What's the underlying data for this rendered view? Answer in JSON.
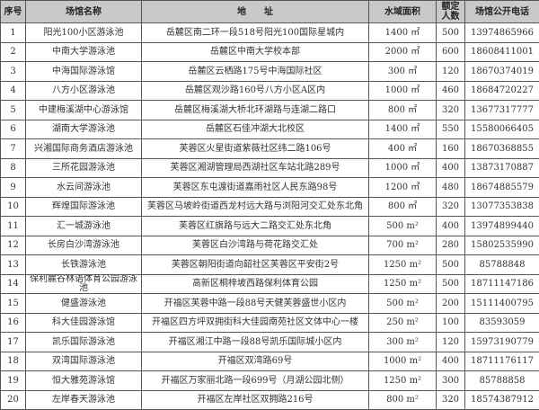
{
  "headers": [
    "序号",
    "场馆名称",
    "地　　址",
    "水域面积",
    "额定人数",
    "场馆公开电话"
  ],
  "rows": [
    {
      "no": "1",
      "name": "阳光100小区游泳池",
      "address": "岳麓区南二环一段518号阳光100国际星城内",
      "area": "1400 ㎡",
      "capacity": "500",
      "phone": "13974865966"
    },
    {
      "no": "2",
      "name": "中南大学游泳池",
      "address": "岳麓区中南大学校本部",
      "area": "2000 ㎡",
      "capacity": "600",
      "phone": "18608411001"
    },
    {
      "no": "3",
      "name": "中海国际游泳馆",
      "address": "岳麓区云栖路175号中海国际社区",
      "area": "300 ㎡",
      "capacity": "120",
      "phone": "18670374019"
    },
    {
      "no": "4",
      "name": "八方小区游泳池",
      "address": "岳麓区观沙路160号八方小区A区内",
      "area": "1000 ㎡",
      "capacity": "460",
      "phone": "18684720227"
    },
    {
      "no": "5",
      "name": "中建梅溪湖中心游泳馆",
      "address": "岳麓区梅溪湖大桥北环湖路与连湖二路口",
      "area": "800 ㎡",
      "capacity": "320",
      "phone": "13677317777"
    },
    {
      "no": "6",
      "name": "湖南大学游泳池",
      "address": "岳麓区石佳冲湖大北校区",
      "area": "1400 ㎡",
      "capacity": "550",
      "phone": "15580066405"
    },
    {
      "no": "7",
      "name": "兴湘国际商务酒店游泳池",
      "address": "芙蓉区火星街道紫薇社区纬二路106号",
      "area": "400 ㎡",
      "capacity": "160",
      "phone": "18670368855"
    },
    {
      "no": "8",
      "name": "三所花园游泳池",
      "address": "芙蓉区湘湖管理局西湖社区车站北路289号",
      "area": "1000 ㎡",
      "capacity": "400",
      "phone": "13873170887"
    },
    {
      "no": "9",
      "name": "水云间游泳池",
      "address": "芙蓉区东屯渡街道嘉雨社区人民东路98号",
      "area": "1200 ㎡",
      "capacity": "480",
      "phone": "18674885579"
    },
    {
      "no": "10",
      "name": "辉煌国际游泳池",
      "address": "芙蓉区马坡岭街道西龙村远大路与浏阳河交汇处东北角",
      "area": "800 ㎡",
      "capacity": "320",
      "phone": "13077353838"
    },
    {
      "no": "11",
      "name": "汇一城游泳池",
      "address": "芙蓉区红旗路与远大二路交汇处东北角",
      "area": "500 m²",
      "capacity": "400",
      "phone": "13974899440"
    },
    {
      "no": "12",
      "name": "长房白沙湾游泳池",
      "address": "芙蓉区白沙湾路与荷花路交汇处",
      "area": "700 m²",
      "capacity": "280",
      "phone": "15802535990"
    },
    {
      "no": "13",
      "name": "长铁游泳池",
      "address": "芙蓉区朝阳街道向韶社区芙蓉区平安街2号",
      "area": "1250 m²",
      "capacity": "500",
      "phone": "85788848"
    },
    {
      "no": "14",
      "name": "保利麓谷林语体育公园游泳池",
      "address": "高新区桐梓坡西路保利体育公园",
      "area": "1250 m²",
      "capacity": "500",
      "phone": "18711147186"
    },
    {
      "no": "15",
      "name": "健盛游泳池",
      "address": "开福区芙蓉中路一段88号天健芙蓉盛世小区内",
      "area": "500 m²",
      "capacity": "200",
      "phone": "15111400795"
    },
    {
      "no": "16",
      "name": "科大佳园游泳馆",
      "address": "开福区四方坪双拥街科大佳园南苑社区文体中心一楼",
      "area": "250 m²",
      "capacity": "100",
      "phone": "83593059"
    },
    {
      "no": "17",
      "name": "凯乐国际游泳池",
      "address": "开福区湘江中路一段88号凯乐国际城小区内",
      "area": "300 m²",
      "capacity": "120",
      "phone": "15973190779"
    },
    {
      "no": "18",
      "name": "双湾国际游泳池",
      "address": "开福区双湾路69号",
      "area": "1000 m²",
      "capacity": "400",
      "phone": "18711176117"
    },
    {
      "no": "19",
      "name": "恒大雅苑游泳馆",
      "address": "开福区万家丽北路一段699号（月湖公园北侧）",
      "area": "1250 m²",
      "capacity": "300",
      "phone": "85788858"
    },
    {
      "no": "20",
      "name": "左岸春天游泳池",
      "address": "开福区左岸社区双拥路216号",
      "area": "800 m²",
      "capacity": "320",
      "phone": "18574387912"
    }
  ],
  "colors": {
    "header_bg": "#c9c9c9",
    "border": "#555555"
  }
}
